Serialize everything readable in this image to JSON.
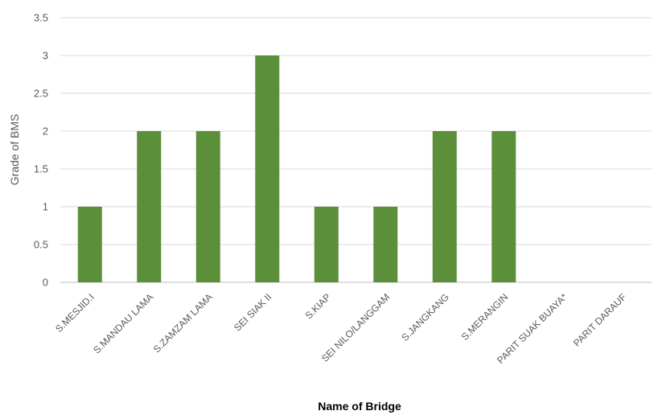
{
  "chart_data": {
    "type": "bar",
    "categories": [
      "S.MESJID.I",
      "S.MANDAU LAMA",
      "S.ZAMZAM LAMA",
      "SEI SIAK II",
      "S.KIAP",
      "SEI NILO/LANGGAM",
      "S.JANGKANG",
      "S.MERANGIN",
      "PARIT SUAK BUAYA*",
      "PARIT DARAUF"
    ],
    "values": [
      1,
      2,
      2,
      3,
      1,
      1,
      2,
      2,
      0,
      0
    ],
    "yticks": [
      "0",
      "0.5",
      "1",
      "1.5",
      "2",
      "2.5",
      "3",
      "3.5"
    ],
    "ylim": [
      0,
      3.5
    ],
    "xlabel": "Name of Bridge",
    "ylabel": "Grade of BMS",
    "grid": true,
    "colors": {
      "bar": "#5b8f3a",
      "grid": "#d9d9d9",
      "axis": "#bfbfbf"
    }
  }
}
